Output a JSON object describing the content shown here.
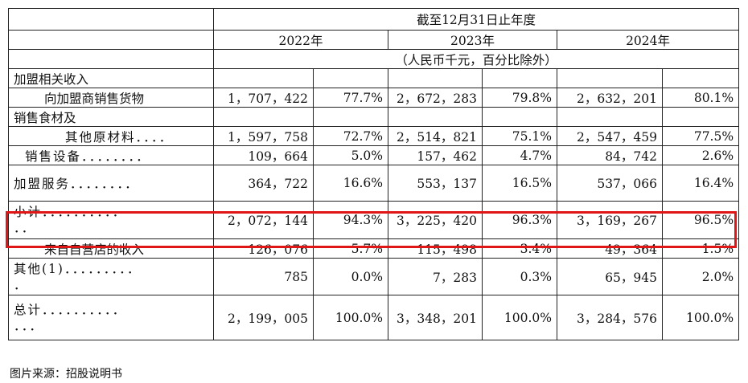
{
  "header": {
    "period": "截至12月31日止年度",
    "years": [
      "2022年",
      "2023年",
      "2024年"
    ],
    "unit": "（人民币千元，百分比除外）"
  },
  "rows": [
    {
      "label": "加盟相关收入",
      "cells": [
        "",
        "",
        "",
        "",
        "",
        ""
      ]
    },
    {
      "label": "向加盟商销售货物",
      "cells": [
        "1，707，422",
        "77.7%",
        "2，672，283",
        "79.8%",
        "2，632，201",
        "80.1%"
      ]
    },
    {
      "label": "销售食材及",
      "cells": [
        "",
        "",
        "",
        "",
        "",
        ""
      ]
    },
    {
      "label": "其他原材料．．．．",
      "cells": [
        "1，597，758",
        "72.7%",
        "2，514，821",
        "75.1%",
        "2，547，459",
        "77.5%"
      ]
    },
    {
      "label": "销售设备．．．．．．．．",
      "cells": [
        "109，664",
        "5.0%",
        "157，462",
        "4.7%",
        "84，742",
        "2.6%"
      ]
    },
    {
      "label": "加盟服务．．．．．．．．",
      "cells": [
        "364，722",
        "16.6%",
        "553，137",
        "16.5%",
        "537，066",
        "16.4%"
      ]
    },
    {
      "label": "小计．．．．．．．．．．",
      "label2": "．．",
      "cells": [
        "2，072，144",
        "94.3%",
        "3，225，420",
        "96.3%",
        "3，169，267",
        "96.5%"
      ]
    },
    {
      "label": "来自自营店的收入",
      "cells": [
        "126，076",
        "5.7%",
        "115，498",
        "3.4%",
        "49，364",
        "1.5%"
      ]
    },
    {
      "label": "其他(1)．．．．．．．．．",
      "label2": "．",
      "cells": [
        "785",
        "0.0%",
        "7，283",
        "0.3%",
        "65，945",
        "2.0%"
      ]
    },
    {
      "label": "总计．．．．．．．．．．",
      "label2": "．．．",
      "cells": [
        "2，199，005",
        "100.0%",
        "3，348，201",
        "100.0%",
        "3，284，576",
        "100.0%"
      ]
    }
  ],
  "source": "图片来源：招股说明书",
  "colors": {
    "highlight": "#e01616",
    "border": "#222222"
  }
}
